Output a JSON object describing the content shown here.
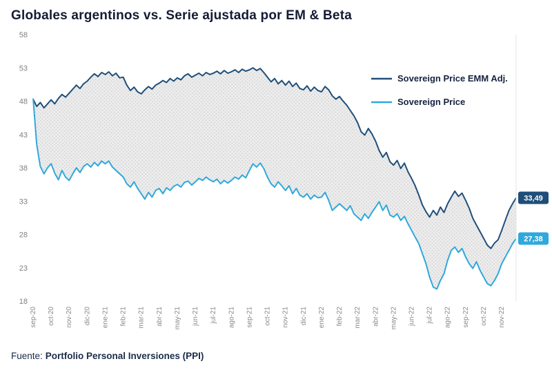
{
  "title": "Globales argentinos vs. Serie ajustada por EM & Beta",
  "source": {
    "prefix": "Fuente:",
    "name": "Portfolio Personal Inversiones (PPI)"
  },
  "colors": {
    "dark_series": "#1f4e79",
    "light_series": "#2fa8dc",
    "axis_text": "#7f7f7f",
    "area_dot": "#c4c4c4",
    "area_bg": "#ececec"
  },
  "chart_data": {
    "type": "line",
    "title": "Globales argentinos vs. Serie ajustada por EM & Beta",
    "xlabel": "",
    "ylabel": "",
    "ylim": [
      18,
      58
    ],
    "yticks": [
      18,
      23,
      28,
      33,
      38,
      43,
      48,
      53,
      58
    ],
    "grid": false,
    "legend_position": "inside-top-right",
    "points_per_month": 5,
    "x_tick_labels": [
      "sep-20",
      "oct-20",
      "nov-20",
      "dic-20",
      "ene-21",
      "feb-21",
      "mar-21",
      "abr-21",
      "may-21",
      "jun-21",
      "jul-21",
      "ago-21",
      "sep-21",
      "oct-21",
      "nov-21",
      "dic-21",
      "ene-22",
      "feb-22",
      "mar-22",
      "abr-22",
      "may-22",
      "jun-22",
      "jul-22",
      "ago-22",
      "sep-22",
      "oct-22",
      "nov-22"
    ],
    "legend": [
      {
        "name": "Sovereign Price EMM Adj.",
        "color": "#1f4e79"
      },
      {
        "name": "Sovereign Price",
        "color": "#2fa8dc"
      }
    ],
    "end_labels": [
      {
        "text": "33,49",
        "value": 33.49,
        "color": "#1f4e79"
      },
      {
        "text": "27,38",
        "value": 27.38,
        "color": "#2fa8dc"
      }
    ],
    "area_between": true,
    "series": [
      {
        "name": "Sovereign Price EMM Adj.",
        "color": "#1f4e79",
        "values": [
          48.3,
          47.2,
          47.8,
          47.0,
          47.6,
          48.2,
          47.6,
          48.4,
          49.0,
          48.6,
          49.2,
          49.8,
          50.4,
          49.9,
          50.6,
          51.0,
          51.6,
          52.1,
          51.7,
          52.3,
          52.0,
          52.4,
          51.8,
          52.2,
          51.5,
          51.6,
          50.4,
          49.6,
          50.1,
          49.4,
          49.1,
          49.7,
          50.2,
          49.8,
          50.4,
          50.7,
          51.1,
          50.8,
          51.4,
          51.0,
          51.5,
          51.2,
          51.8,
          52.1,
          51.6,
          51.9,
          52.2,
          51.8,
          52.3,
          52.0,
          52.2,
          52.5,
          52.1,
          52.6,
          52.2,
          52.4,
          52.7,
          52.3,
          52.8,
          52.5,
          52.7,
          53.0,
          52.6,
          52.9,
          52.3,
          51.6,
          50.9,
          51.4,
          50.6,
          51.1,
          50.4,
          51.0,
          50.2,
          50.7,
          49.9,
          49.7,
          50.3,
          49.5,
          50.1,
          49.6,
          49.4,
          50.2,
          49.7,
          48.8,
          48.3,
          48.7,
          48.0,
          47.4,
          46.6,
          45.8,
          44.8,
          43.4,
          42.9,
          43.9,
          43.1,
          42.0,
          40.6,
          39.6,
          40.3,
          38.9,
          38.4,
          39.1,
          37.9,
          38.7,
          37.4,
          36.4,
          35.3,
          33.9,
          32.4,
          31.4,
          30.6,
          31.6,
          30.9,
          32.1,
          31.3,
          32.6,
          33.6,
          34.5,
          33.7,
          34.2,
          33.1,
          31.9,
          30.4,
          29.4,
          28.4,
          27.4,
          26.4,
          25.9,
          26.7,
          27.2,
          28.6,
          30.1,
          31.6,
          32.6,
          33.49
        ]
      },
      {
        "name": "Sovereign Price",
        "color": "#2fa8dc",
        "values": [
          48.4,
          41.5,
          38.2,
          37.1,
          38.0,
          38.6,
          37.2,
          36.2,
          37.6,
          36.6,
          36.1,
          37.1,
          38.0,
          37.3,
          38.2,
          38.6,
          38.1,
          38.8,
          38.3,
          39.0,
          38.6,
          39.0,
          38.1,
          37.6,
          37.1,
          36.6,
          35.6,
          35.1,
          35.9,
          34.9,
          34.1,
          33.3,
          34.3,
          33.6,
          34.6,
          34.9,
          34.1,
          35.0,
          34.6,
          35.2,
          35.5,
          35.1,
          35.8,
          36.0,
          35.4,
          35.9,
          36.4,
          36.1,
          36.6,
          36.2,
          35.9,
          36.3,
          35.6,
          36.1,
          35.7,
          36.1,
          36.6,
          36.3,
          36.9,
          36.5,
          37.6,
          38.6,
          38.1,
          38.7,
          37.9,
          36.6,
          35.6,
          35.1,
          35.9,
          35.3,
          34.6,
          35.3,
          34.1,
          34.9,
          33.9,
          33.6,
          34.1,
          33.3,
          33.9,
          33.5,
          33.6,
          34.3,
          33.1,
          31.6,
          32.1,
          32.6,
          32.1,
          31.6,
          32.3,
          31.1,
          30.6,
          30.1,
          31.1,
          30.4,
          31.3,
          32.1,
          32.9,
          31.6,
          32.4,
          30.9,
          30.6,
          31.1,
          30.1,
          30.7,
          29.6,
          28.6,
          27.6,
          26.6,
          25.1,
          23.6,
          21.6,
          20.1,
          19.8,
          21.1,
          22.1,
          24.1,
          25.6,
          26.1,
          25.3,
          25.9,
          24.6,
          23.6,
          22.9,
          23.9,
          22.6,
          21.6,
          20.6,
          20.3,
          21.1,
          22.1,
          23.6,
          24.6,
          25.6,
          26.6,
          27.38
        ]
      }
    ]
  }
}
